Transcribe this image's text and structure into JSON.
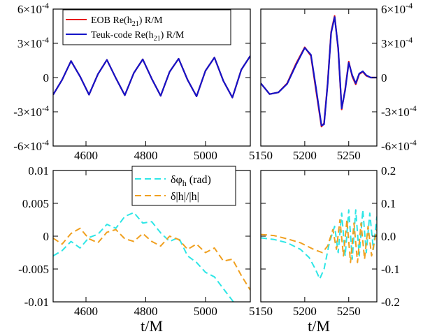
{
  "chart_data": [
    {
      "panel": "top-left",
      "type": "line",
      "xlim": [
        4490,
        5150
      ],
      "ylim": [
        -0.0006,
        0.0006
      ],
      "x_ticks": [
        4600,
        4800,
        5000
      ],
      "y_ticks": [
        {
          "value": 0.0006,
          "label": "6×10⁻⁴"
        },
        {
          "value": 0.0003,
          "label": "3×10⁻⁴"
        },
        {
          "value": 0,
          "label": "0"
        },
        {
          "value": -0.0003,
          "label": "-3×10⁻⁴"
        },
        {
          "value": -0.0006,
          "label": "-6×10⁻⁴"
        }
      ],
      "legend_position": "top-left",
      "series": [
        {
          "name": "EOB Re(h21) R/M",
          "color": "#e8141c",
          "x": [
            4490,
            4520,
            4550,
            4580,
            4610,
            4640,
            4670,
            4700,
            4730,
            4760,
            4790,
            4820,
            4850,
            4880,
            4910,
            4940,
            4970,
            5000,
            5030,
            5060,
            5090,
            5120,
            5150
          ],
          "y": [
            -0.00015,
            -2e-05,
            0.000145,
            1e-05,
            -0.00015,
            3e-05,
            0.000155,
            -5e-06,
            -0.000155,
            4e-05,
            0.00016,
            -1e-05,
            -0.00016,
            5e-05,
            0.000165,
            -2e-05,
            -0.000165,
            6e-05,
            0.000175,
            -3e-05,
            -0.000175,
            7e-05,
            0.00019
          ]
        },
        {
          "name": "Teuk-code Re(h21) R/M",
          "color": "#1414c8",
          "x": [
            4490,
            4520,
            4550,
            4580,
            4610,
            4640,
            4670,
            4700,
            4730,
            4760,
            4790,
            4820,
            4850,
            4880,
            4910,
            4940,
            4970,
            5000,
            5030,
            5060,
            5090,
            5120,
            5150
          ],
          "y": [
            -0.00015,
            -2e-05,
            0.000145,
            1e-05,
            -0.00015,
            3e-05,
            0.000155,
            -5e-06,
            -0.000155,
            4e-05,
            0.00016,
            -1e-05,
            -0.00016,
            5e-05,
            0.000165,
            -2e-05,
            -0.000165,
            6e-05,
            0.000175,
            -3e-05,
            -0.000175,
            7e-05,
            0.00019
          ]
        }
      ]
    },
    {
      "panel": "top-right",
      "type": "line",
      "xlim": [
        5150,
        5282
      ],
      "ylim": [
        -0.0006,
        0.0006
      ],
      "x_ticks": [
        5150,
        5200,
        5250
      ],
      "y_ticks": [
        {
          "value": 0.0006,
          "label": "6×10⁻⁴"
        },
        {
          "value": 0.0003,
          "label": "3×10⁻⁴"
        },
        {
          "value": 0,
          "label": "0"
        },
        {
          "value": -0.0003,
          "label": "-3×10⁻⁴"
        },
        {
          "value": -0.0006,
          "label": "-6×10⁻⁴"
        }
      ],
      "series": [
        {
          "name": "EOB Re(h21) R/M",
          "color": "#e8141c",
          "x": [
            5150,
            5160,
            5170,
            5180,
            5190,
            5200,
            5207,
            5213,
            5219,
            5222,
            5226,
            5230,
            5234,
            5238,
            5242,
            5246,
            5250,
            5254,
            5258,
            5262,
            5266,
            5270,
            5275,
            5282
          ],
          "y": [
            -5e-05,
            -0.000145,
            -0.00013,
            -5e-05,
            0.00012,
            0.000265,
            0.00019,
            -0.00012,
            -0.00043,
            -0.0004,
            -5e-05,
            0.0004,
            0.00054,
            0.00025,
            -0.00028,
            -0.0001,
            0.00014,
            1e-05,
            -6e-05,
            3e-05,
            5e-05,
            1.5e-05,
            0.0,
            0.0
          ]
        },
        {
          "name": "Teuk-code Re(h21) R/M",
          "color": "#1414c8",
          "x": [
            5150,
            5160,
            5170,
            5180,
            5190,
            5200,
            5207,
            5213,
            5219,
            5222,
            5226,
            5230,
            5234,
            5238,
            5242,
            5246,
            5250,
            5254,
            5258,
            5262,
            5266,
            5270,
            5275,
            5282
          ],
          "y": [
            -5e-05,
            -0.000145,
            -0.00013,
            -5.5e-05,
            0.00011,
            0.00026,
            0.0002,
            -0.0001,
            -0.00042,
            -0.00041,
            -6e-05,
            0.00039,
            0.00053,
            0.00026,
            -0.00027,
            -0.00011,
            0.00013,
            2e-05,
            -5e-05,
            3.5e-05,
            5.5e-05,
            2e-05,
            0.0,
            0.0
          ]
        }
      ]
    },
    {
      "panel": "bottom-left",
      "type": "line",
      "xlim": [
        4490,
        5150
      ],
      "ylim": [
        -0.01,
        0.01
      ],
      "x_ticks": [
        4600,
        4800,
        5000
      ],
      "x_tick_labels": [
        "4600",
        "4800",
        "5000"
      ],
      "y_ticks": [
        {
          "value": 0.01,
          "label": "0.01"
        },
        {
          "value": 0.005,
          "label": "0.005"
        },
        {
          "value": 0,
          "label": "0"
        },
        {
          "value": -0.005,
          "label": "-0.005"
        },
        {
          "value": -0.01,
          "label": "-0.01"
        }
      ],
      "xlabel": "t/M",
      "legend_position": "top-right",
      "series": [
        {
          "name": "δφh (rad)",
          "color": "#2ee6e6",
          "x": [
            4490,
            4520,
            4550,
            4580,
            4610,
            4640,
            4670,
            4700,
            4730,
            4760,
            4790,
            4820,
            4850,
            4880,
            4910,
            4940,
            4970,
            5000,
            5030,
            5060,
            5090,
            5120
          ],
          "y": [
            -0.003,
            -0.0022,
            -0.0008,
            -0.0018,
            -0.0002,
            0.0003,
            0.0018,
            0.0012,
            0.003,
            0.0036,
            0.002,
            0.0022,
            0.0005,
            -0.0008,
            -0.0002,
            -0.003,
            -0.004,
            -0.0055,
            -0.0062,
            -0.008,
            -0.0098,
            -0.0115
          ]
        },
        {
          "name": "δ|h|/|h|",
          "color": "#f0a020",
          "x": [
            4490,
            4520,
            4550,
            4580,
            4610,
            4640,
            4670,
            4700,
            4730,
            4760,
            4790,
            4820,
            4850,
            4880,
            4910,
            4940,
            4970,
            5000,
            5030,
            5060,
            5090,
            5120,
            5150
          ],
          "y": [
            -0.0003,
            -0.0012,
            0.0004,
            0.0012,
            -0.0004,
            -0.001,
            0.0006,
            0.001,
            -0.0004,
            -0.0008,
            0.0004,
            -0.0008,
            -0.0015,
            0.0,
            -0.0005,
            -0.002,
            -0.0012,
            -0.0025,
            -0.0018,
            -0.0038,
            -0.0035,
            -0.006,
            -0.0082
          ]
        }
      ]
    },
    {
      "panel": "bottom-right",
      "type": "line",
      "xlim": [
        5150,
        5282
      ],
      "ylim": [
        -0.2,
        0.2
      ],
      "x_ticks": [
        5150,
        5200,
        5250
      ],
      "x_tick_labels": [
        "5150",
        "5200",
        "5250"
      ],
      "y_ticks": [
        {
          "value": 0.2,
          "label": "0.2"
        },
        {
          "value": 0.1,
          "label": "0.1"
        },
        {
          "value": 0,
          "label": "0.0"
        },
        {
          "value": -0.1,
          "label": "-0.1"
        },
        {
          "value": -0.2,
          "label": "-0.2"
        }
      ],
      "xlabel": "t/M",
      "series": [
        {
          "name": "δφh (rad)",
          "color": "#2ee6e6",
          "x": [
            5150,
            5165,
            5180,
            5195,
            5205,
            5212,
            5217,
            5222,
            5228,
            5234,
            5238,
            5242,
            5246,
            5250,
            5254,
            5258,
            5262,
            5266,
            5270,
            5274,
            5278,
            5282
          ],
          "y": [
            -0.005,
            -0.01,
            -0.02,
            -0.04,
            -0.065,
            -0.1,
            -0.13,
            -0.1,
            -0.02,
            0.03,
            -0.05,
            0.07,
            -0.06,
            0.08,
            -0.07,
            0.08,
            -0.06,
            0.08,
            -0.05,
            0.07,
            -0.04,
            0.06
          ]
        },
        {
          "name": "δ|h|/|h|",
          "color": "#f0a020",
          "x": [
            5150,
            5165,
            5180,
            5195,
            5210,
            5220,
            5226,
            5232,
            5236,
            5240,
            5244,
            5248,
            5252,
            5256,
            5260,
            5264,
            5268,
            5272,
            5276,
            5282
          ],
          "y": [
            0.005,
            0.002,
            -0.008,
            -0.02,
            -0.04,
            -0.05,
            -0.03,
            0.02,
            -0.04,
            0.05,
            -0.06,
            0.05,
            -0.08,
            0.04,
            -0.08,
            0.04,
            -0.07,
            0.03,
            -0.06,
            0.02
          ]
        }
      ]
    }
  ],
  "legend_top": {
    "entries": [
      {
        "pre": "EOB Re(h",
        "sub": "21",
        "post": ") R/M"
      },
      {
        "pre": "Teuk-code Re(h",
        "sub": "21",
        "post": ") R/M"
      }
    ]
  },
  "legend_bottom": {
    "entries": [
      {
        "pre": "δφ",
        "sub": "h",
        "post": " (rad)"
      },
      {
        "pre": "δ|h|/|h|",
        "sub": "",
        "post": ""
      }
    ]
  }
}
